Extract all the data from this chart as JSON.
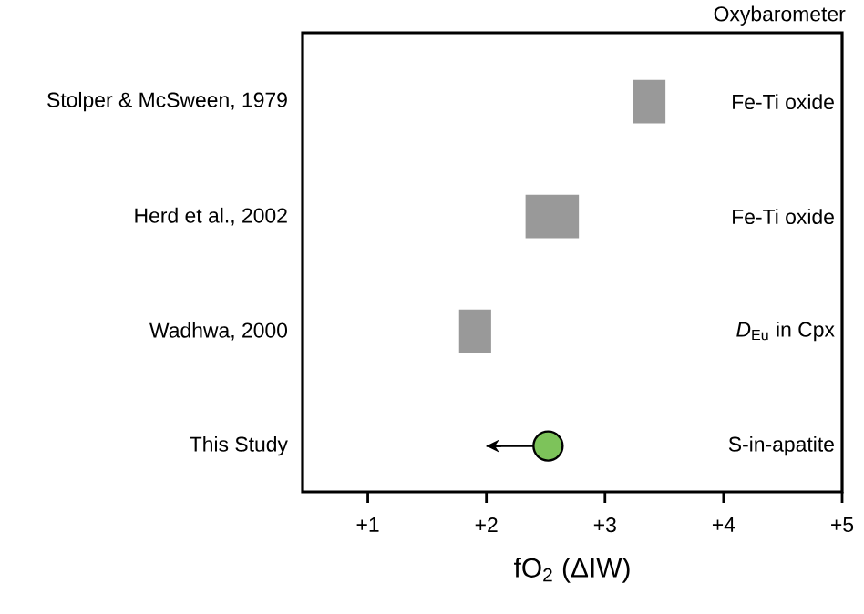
{
  "chart_data": {
    "type": "bar",
    "orientation": "horizontal",
    "xlabel": "fO$_{2}$ (ΔIW)",
    "categories": [
      "Stolper & McSween, 1979",
      "Herd et al., 2002",
      "Wadhwa, 2000",
      "This Study"
    ],
    "series": [
      {
        "type": "bar",
        "color": "#999999",
        "base": [
          3.24,
          2.33,
          1.77,
          null
        ],
        "values": [
          0.27,
          0.45,
          0.27,
          null
        ]
      },
      {
        "type": "scatter",
        "color": "#7dc35a",
        "marker": "circle",
        "values": [
          null,
          null,
          null,
          2.52
        ],
        "errors": [
          null,
          null,
          null,
          [
            2.0,
            2.52
          ]
        ]
      }
    ],
    "xlim": [
      0.45,
      5
    ],
    "xticks": [
      {
        "value": 1,
        "label": "+1"
      },
      {
        "value": 2,
        "label": "+2"
      },
      {
        "value": 3,
        "label": "+3"
      },
      {
        "value": 4,
        "label": "+4"
      },
      {
        "value": 5,
        "label": "+5"
      }
    ],
    "grid": false,
    "annotations": [
      "Oxybarometer",
      "Fe-Ti oxide",
      "Fe-Ti oxide",
      "*D*$_{Eu}$ in Cpx",
      "S-in-apatite"
    ]
  }
}
